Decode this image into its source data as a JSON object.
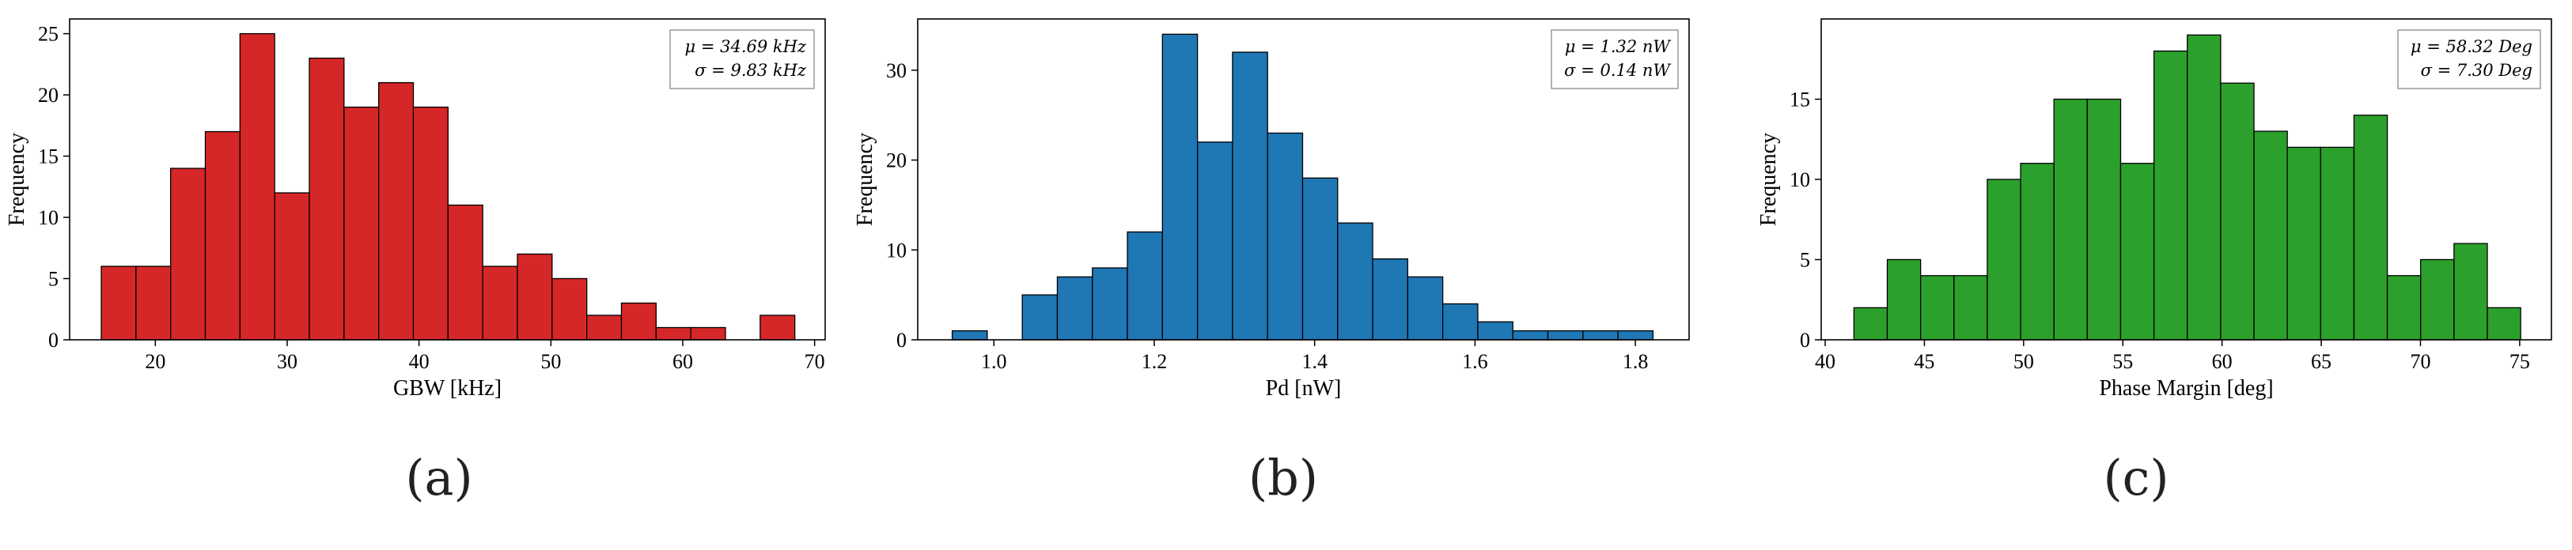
{
  "chart_data": [
    {
      "type": "bar",
      "caption": "(a)",
      "xlabel": "GBW [kHz]",
      "ylabel": "Frequency",
      "color": "#d62728",
      "xlim": [
        13.5,
        70.8
      ],
      "ylim": [
        0,
        26.2
      ],
      "xticks": [
        20,
        30,
        40,
        50,
        60,
        70
      ],
      "yticks": [
        0,
        5,
        10,
        15,
        20,
        25
      ],
      "bin_start": 15.9,
      "bin_width": 2.63,
      "values": [
        6,
        6,
        14,
        17,
        25,
        12,
        23,
        19,
        21,
        19,
        11,
        6,
        7,
        5,
        2,
        3,
        1,
        1,
        0,
        2
      ],
      "annotation": [
        "μ = 34.69 kHz",
        "σ = 9.83 kHz"
      ]
    },
    {
      "type": "bar",
      "caption": "(b)",
      "xlabel": "Pd [nW]",
      "ylabel": "Frequency",
      "color": "#1f77b4",
      "xlim": [
        0.905,
        1.867
      ],
      "ylim": [
        0,
        35.7
      ],
      "xticks": [
        1.0,
        1.2,
        1.4,
        1.6,
        1.8
      ],
      "yticks": [
        0,
        10,
        20,
        30
      ],
      "bin_start": 0.948,
      "bin_width": 0.0437,
      "values": [
        1,
        0,
        5,
        7,
        8,
        12,
        34,
        22,
        32,
        23,
        18,
        13,
        9,
        7,
        4,
        2,
        1,
        1,
        1,
        1
      ],
      "annotation": [
        "μ = 1.32 nW",
        "σ = 0.14 nW"
      ]
    },
    {
      "type": "bar",
      "caption": "(c)",
      "xlabel": "Phase Margin [deg]",
      "ylabel": "Frequency",
      "color": "#2ca02c",
      "xlim": [
        39.8,
        76.6
      ],
      "ylim": [
        0,
        20
      ],
      "xticks": [
        40,
        45,
        50,
        55,
        60,
        65,
        70,
        75
      ],
      "yticks": [
        0,
        5,
        10,
        15
      ],
      "bin_start": 41.45,
      "bin_width": 1.68,
      "values": [
        2,
        5,
        4,
        4,
        10,
        11,
        15,
        15,
        11,
        18,
        19,
        16,
        13,
        12,
        12,
        14,
        4,
        5,
        6,
        2
      ],
      "annotation": [
        "μ = 58.32 Deg",
        "σ = 7.30 Deg"
      ]
    }
  ]
}
